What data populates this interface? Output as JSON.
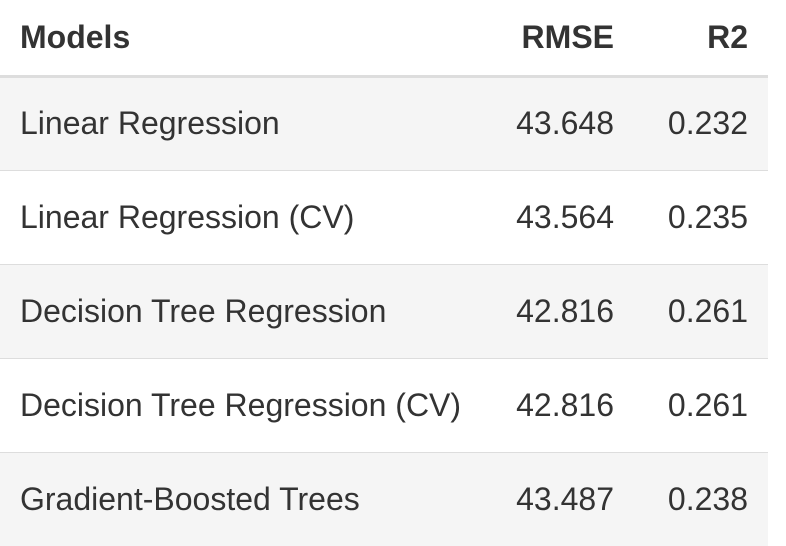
{
  "table": {
    "headers": {
      "model": "Models",
      "rmse": "RMSE",
      "r2": "R2"
    },
    "rows": [
      {
        "model": "Linear Regression",
        "rmse": "43.648",
        "r2": "0.232"
      },
      {
        "model": "Linear Regression (CV)",
        "rmse": "43.564",
        "r2": "0.235"
      },
      {
        "model": "Decision Tree Regression",
        "rmse": "42.816",
        "r2": "0.261"
      },
      {
        "model": "Decision Tree Regression (CV)",
        "rmse": "42.816",
        "r2": "0.261"
      },
      {
        "model": "Gradient-Boosted Trees",
        "rmse": "43.487",
        "r2": "0.238"
      }
    ]
  },
  "colors": {
    "text": "#333333",
    "stripe": "#f5f5f5",
    "border": "#dddddd"
  }
}
